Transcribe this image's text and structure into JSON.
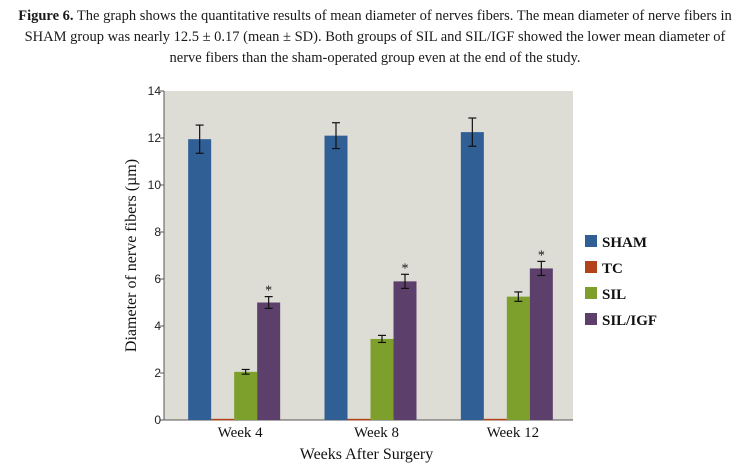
{
  "caption": {
    "label": "Figure 6.",
    "text": "The graph shows the quantitative results of mean diameter of nerves fibers. The mean diameter of nerve fibers in SHAM group was nearly 12.5 ± 0.17 (mean ± SD). Both groups of SIL and SIL/IGF showed the lower mean diameter of nerve fibers than the sham-operated group even at the end of the study."
  },
  "chart_data": {
    "type": "bar",
    "title": "",
    "xlabel": "Weeks After Surgery",
    "ylabel": "Diameter of nerve fibers (µm)",
    "ylim": [
      0,
      14
    ],
    "yticks": [
      0,
      2,
      4,
      6,
      8,
      10,
      12,
      14
    ],
    "grid": false,
    "legend_position": "right",
    "categories": [
      "Week 4",
      "Week 8",
      "Week 12"
    ],
    "series": [
      {
        "name": "SHAM",
        "color": "#2f5f95",
        "values": [
          11.95,
          12.1,
          12.25
        ],
        "errors": [
          0.6,
          0.55,
          0.6
        ],
        "significant": [
          false,
          false,
          false
        ]
      },
      {
        "name": "TC",
        "color": "#b2421a",
        "values": [
          0.05,
          0.05,
          0.05
        ],
        "errors": [
          0,
          0,
          0
        ],
        "significant": [
          false,
          false,
          false
        ]
      },
      {
        "name": "SIL",
        "color": "#7ca02b",
        "values": [
          2.05,
          3.45,
          5.25
        ],
        "errors": [
          0.1,
          0.15,
          0.2
        ],
        "significant": [
          false,
          false,
          false
        ]
      },
      {
        "name": "SIL/IGF",
        "color": "#5c3f6b",
        "values": [
          5.0,
          5.9,
          6.45
        ],
        "errors": [
          0.25,
          0.3,
          0.3
        ],
        "significant": [
          true,
          true,
          true
        ]
      }
    ],
    "significance_marker": "*",
    "plot_background": "#deddd5"
  }
}
